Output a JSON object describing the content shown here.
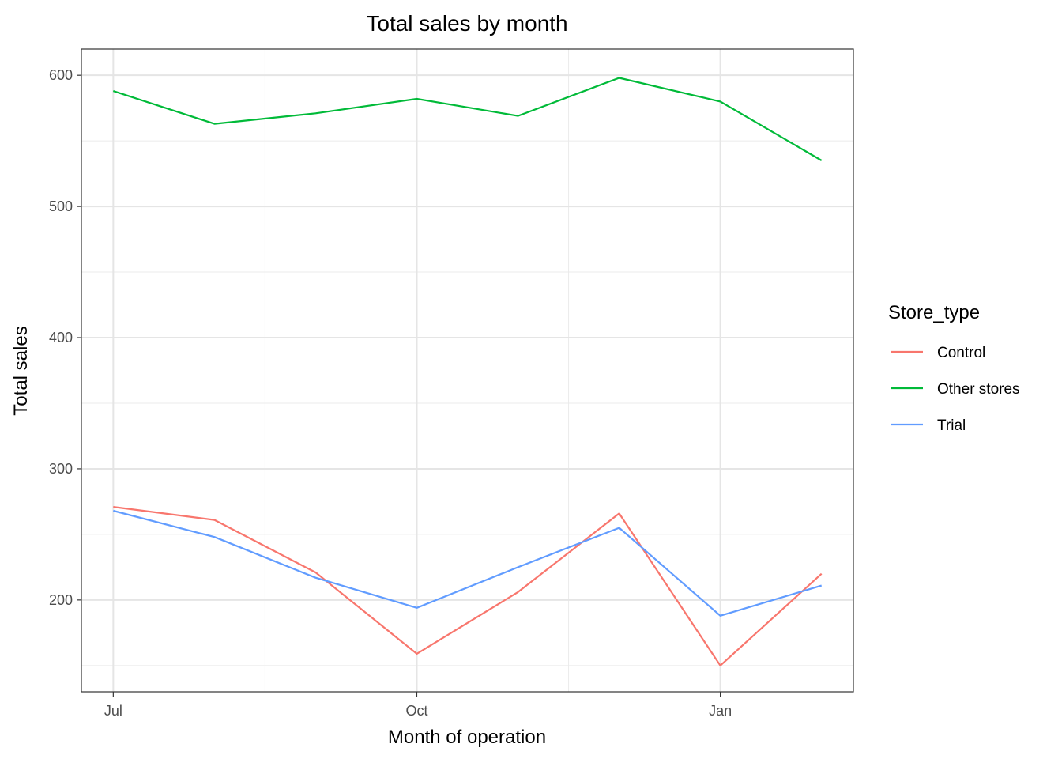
{
  "chart_data": {
    "type": "line",
    "title": "Total sales by month",
    "xlabel": "Month of operation",
    "ylabel": "Total sales",
    "x": [
      "2018-07",
      "2018-08",
      "2018-09",
      "2018-10",
      "2018-11",
      "2018-12",
      "2019-01",
      "2019-02"
    ],
    "x_ticks": [
      {
        "label": "Jul",
        "value": "2018-07"
      },
      {
        "label": "Oct",
        "value": "2018-10"
      },
      {
        "label": "Jan",
        "value": "2019-01"
      }
    ],
    "y_ticks": [
      200,
      300,
      400,
      500,
      600
    ],
    "ylim": [
      130,
      620
    ],
    "grid": true,
    "legend": {
      "title": "Store_type",
      "position": "right"
    },
    "series": [
      {
        "name": "Control",
        "color": "#F8766D",
        "values": [
          271,
          261,
          221,
          159,
          206,
          266,
          150,
          220
        ]
      },
      {
        "name": "Other stores",
        "color": "#00BA38",
        "values": [
          588,
          563,
          571,
          582,
          569,
          598,
          580,
          535
        ]
      },
      {
        "name": "Trial",
        "color": "#619CFF",
        "values": [
          268,
          248,
          217,
          194,
          225,
          255,
          188,
          211
        ]
      }
    ]
  }
}
